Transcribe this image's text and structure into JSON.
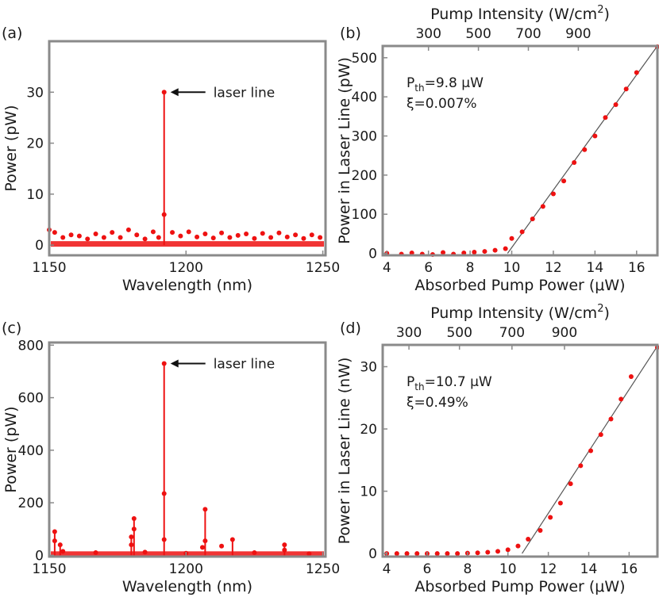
{
  "colors": {
    "data": "#ee1111",
    "fit": "#555555",
    "axis": "#8a8a8a"
  },
  "chart_data": [
    {
      "type": "line",
      "panel_label": "(a)",
      "xlabel": "Wavelength (nm)",
      "ylabel": "Power (pW)",
      "xlim": [
        1150,
        1251
      ],
      "ylim": [
        -2,
        40
      ],
      "xticks": [
        1150,
        1200,
        1250
      ],
      "yticks": [
        0,
        10,
        20,
        30
      ],
      "xtick_labels": [
        "1150",
        "1200",
        "1250"
      ],
      "ytick_labels": [
        "0",
        "10",
        "20",
        "30"
      ],
      "annotation": "laser line",
      "lines": [
        {
          "x": 1192,
          "y0": 0,
          "y1": 30
        }
      ],
      "points": [
        [
          1192,
          30
        ],
        [
          1192,
          6
        ],
        [
          1150,
          3
        ],
        [
          1152,
          2.5
        ],
        [
          1155,
          1.5
        ],
        [
          1158,
          2
        ],
        [
          1161,
          1.8
        ],
        [
          1164,
          1.2
        ],
        [
          1167,
          2.2
        ],
        [
          1170,
          1.5
        ],
        [
          1173,
          2.5
        ],
        [
          1176,
          1.5
        ],
        [
          1179,
          3
        ],
        [
          1182,
          2
        ],
        [
          1185,
          1.2
        ],
        [
          1188,
          2.6
        ],
        [
          1190,
          1.5
        ],
        [
          1195,
          2.5
        ],
        [
          1198,
          1.8
        ],
        [
          1201,
          2.6
        ],
        [
          1204,
          1.6
        ],
        [
          1207,
          2.2
        ],
        [
          1210,
          1.4
        ],
        [
          1213,
          2.4
        ],
        [
          1216,
          1.5
        ],
        [
          1219,
          1.9
        ],
        [
          1222,
          2.2
        ],
        [
          1225,
          1.3
        ],
        [
          1228,
          2.3
        ],
        [
          1231,
          1.5
        ],
        [
          1234,
          2.4
        ],
        [
          1237,
          1.6
        ],
        [
          1240,
          2
        ],
        [
          1243,
          1.3
        ],
        [
          1246,
          2
        ],
        [
          1249,
          1.5
        ]
      ],
      "baseline": true
    },
    {
      "type": "scatter",
      "panel_label": "(b)",
      "xlabel": "Absorbed Pump Power (μW)",
      "ylabel": "Power in Laser Line (pW)",
      "top_xlabel": "Pump Intensity (W/cm",
      "top_xlabel_sup": "2",
      "top_xlabel_end": ")",
      "xlim": [
        3.8,
        17
      ],
      "ylim": [
        -5,
        530
      ],
      "xticks": [
        4,
        6,
        8,
        10,
        12,
        14,
        16
      ],
      "yticks": [
        0,
        100,
        200,
        300,
        400,
        500
      ],
      "xtick_labels": [
        "4",
        "6",
        "8",
        "10",
        "12",
        "14",
        "16"
      ],
      "ytick_labels": [
        "0",
        "100",
        "200",
        "300",
        "400",
        "500"
      ],
      "top_ticks": [
        300,
        500,
        700,
        900
      ],
      "top_tick_labels": [
        "300",
        "500",
        "700",
        "900"
      ],
      "top_tick_positions": [
        6.0,
        8.4,
        10.8,
        13.2
      ],
      "fit_line": {
        "x0": 9.8,
        "y0": 0,
        "x1": 17,
        "y1": 530
      },
      "annotation_main": "P",
      "annotation_sub": "th",
      "annotation_rest": "=9.8  μW",
      "annotation_2": "ξ=0.007%",
      "points": [
        [
          4,
          0
        ],
        [
          4.7,
          -2
        ],
        [
          5.2,
          1
        ],
        [
          5.7,
          -2
        ],
        [
          6.2,
          -3
        ],
        [
          6.7,
          2
        ],
        [
          7.2,
          -2
        ],
        [
          7.7,
          1
        ],
        [
          8.2,
          3
        ],
        [
          8.7,
          5
        ],
        [
          9.2,
          8
        ],
        [
          9.7,
          12
        ],
        [
          10.0,
          38
        ],
        [
          10.5,
          55
        ],
        [
          11.0,
          88
        ],
        [
          11.5,
          120
        ],
        [
          12.0,
          152
        ],
        [
          12.5,
          185
        ],
        [
          13.0,
          232
        ],
        [
          13.5,
          265
        ],
        [
          14.0,
          300
        ],
        [
          14.5,
          347
        ],
        [
          15.0,
          380
        ],
        [
          15.5,
          420
        ],
        [
          16.0,
          462
        ],
        [
          17.0,
          528
        ]
      ]
    },
    {
      "type": "line",
      "panel_label": "(c)",
      "xlabel": "Wavelength (nm)",
      "ylabel": "Power (pW)",
      "xlim": [
        1150,
        1251
      ],
      "ylim": [
        -5,
        810
      ],
      "xticks": [
        1150,
        1200,
        1250
      ],
      "yticks": [
        0,
        200,
        400,
        600,
        800
      ],
      "xtick_labels": [
        "1150",
        "1200",
        "1250"
      ],
      "ytick_labels": [
        "0",
        "200",
        "400",
        "600",
        "800"
      ],
      "annotation": "laser line",
      "lines": [
        {
          "x": 1192,
          "y0": 0,
          "y1": 730
        },
        {
          "x": 1152,
          "y0": 0,
          "y1": 90
        },
        {
          "x": 1154,
          "y0": 0,
          "y1": 40
        },
        {
          "x": 1181,
          "y0": 0,
          "y1": 140
        },
        {
          "x": 1180,
          "y0": 0,
          "y1": 70
        },
        {
          "x": 1207,
          "y0": 0,
          "y1": 175
        },
        {
          "x": 1217,
          "y0": 0,
          "y1": 60
        },
        {
          "x": 1236,
          "y0": 0,
          "y1": 40
        }
      ],
      "points": [
        [
          1192,
          730
        ],
        [
          1192,
          235
        ],
        [
          1192,
          60
        ],
        [
          1152,
          90
        ],
        [
          1152,
          55
        ],
        [
          1154,
          40
        ],
        [
          1155,
          15
        ],
        [
          1181,
          140
        ],
        [
          1181,
          100
        ],
        [
          1180,
          70
        ],
        [
          1180,
          40
        ],
        [
          1207,
          175
        ],
        [
          1207,
          55
        ],
        [
          1206,
          30
        ],
        [
          1213,
          35
        ],
        [
          1217,
          60
        ],
        [
          1236,
          40
        ],
        [
          1236,
          20
        ],
        [
          1167,
          10
        ],
        [
          1185,
          12
        ],
        [
          1200,
          8
        ],
        [
          1225,
          10
        ],
        [
          1245,
          6
        ]
      ],
      "baseline": true
    },
    {
      "type": "scatter",
      "panel_label": "(d)",
      "xlabel": "Absorbed Pump Power (μW)",
      "ylabel": "Power in Laser Line (nW)",
      "top_xlabel": "Pump Intensity (W/cm",
      "top_xlabel_sup": "2",
      "top_xlabel_end": ")",
      "xlim": [
        3.8,
        17.4
      ],
      "ylim": [
        -0.5,
        33.5
      ],
      "xticks": [
        4,
        6,
        8,
        10,
        12,
        14,
        16
      ],
      "yticks": [
        0,
        10,
        20,
        30
      ],
      "xtick_labels": [
        "4",
        "6",
        "8",
        "10",
        "12",
        "14",
        "16"
      ],
      "ytick_labels": [
        "0",
        "10",
        "20",
        "30"
      ],
      "top_ticks": [
        300,
        500,
        700,
        900
      ],
      "top_tick_labels": [
        "300",
        "500",
        "700",
        "900"
      ],
      "top_tick_positions": [
        5.1,
        7.6,
        10.2,
        12.8
      ],
      "fit_line": {
        "x0": 10.7,
        "y0": 0,
        "x1": 17.4,
        "y1": 33.3
      },
      "annotation_main": "P",
      "annotation_sub": "th",
      "annotation_rest": "=10.7  μW",
      "annotation_2": "ξ=0.49%",
      "points": [
        [
          4,
          0
        ],
        [
          4.5,
          0
        ],
        [
          5,
          0
        ],
        [
          5.5,
          0
        ],
        [
          6,
          0
        ],
        [
          6.5,
          0
        ],
        [
          7,
          0
        ],
        [
          7.5,
          0
        ],
        [
          8,
          0.05
        ],
        [
          8.5,
          0.1
        ],
        [
          9,
          0.2
        ],
        [
          9.5,
          0.35
        ],
        [
          10,
          0.6
        ],
        [
          10.5,
          1.2
        ],
        [
          11,
          2.3
        ],
        [
          11.6,
          3.7
        ],
        [
          12.1,
          5.8
        ],
        [
          12.6,
          8.1
        ],
        [
          13.1,
          11.2
        ],
        [
          13.6,
          14.1
        ],
        [
          14.1,
          16.5
        ],
        [
          14.6,
          19.1
        ],
        [
          15.1,
          21.6
        ],
        [
          15.6,
          24.8
        ],
        [
          16.1,
          28.4
        ],
        [
          17.4,
          33.1
        ]
      ]
    }
  ]
}
